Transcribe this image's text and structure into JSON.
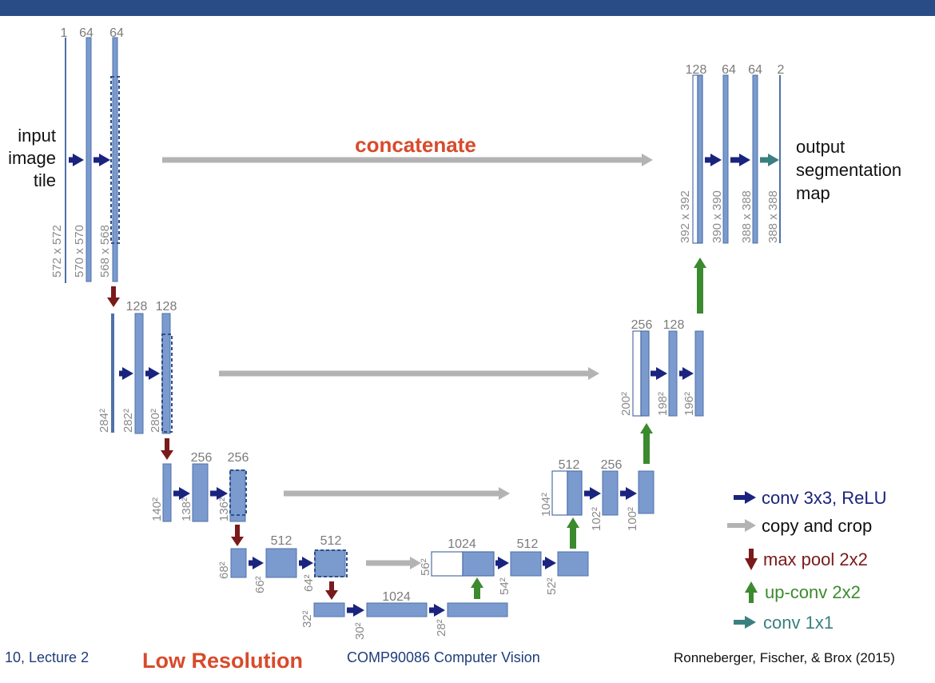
{
  "header": {
    "bar_color": "#2a4c86"
  },
  "diagram": {
    "input_label": [
      "input",
      "image",
      "tile"
    ],
    "output_label": [
      "output",
      "segmentation",
      "map"
    ],
    "concatenate_label": "concatenate",
    "blocks": [
      {
        "id": "in0",
        "ch": "1",
        "size": "572 x 572"
      },
      {
        "id": "e1a",
        "ch": "64",
        "size": "570 x 570"
      },
      {
        "id": "e1b",
        "ch": "64",
        "size": "568 x 568"
      },
      {
        "id": "e2p",
        "ch": "",
        "size": "284²"
      },
      {
        "id": "e2a",
        "ch": "128",
        "size": "282²"
      },
      {
        "id": "e2b",
        "ch": "128",
        "size": "280²"
      },
      {
        "id": "e3p",
        "ch": "",
        "size": "140²"
      },
      {
        "id": "e3a",
        "ch": "256",
        "size": "138²"
      },
      {
        "id": "e3b",
        "ch": "256",
        "size": "136²"
      },
      {
        "id": "e4p",
        "ch": "",
        "size": "68²"
      },
      {
        "id": "e4a",
        "ch": "512",
        "size": "66²"
      },
      {
        "id": "e4b",
        "ch": "512",
        "size": "64²"
      },
      {
        "id": "bp",
        "ch": "",
        "size": "32²"
      },
      {
        "id": "ba",
        "ch": "1024",
        "size": "30²"
      },
      {
        "id": "bb",
        "ch": "",
        "size": "28²"
      },
      {
        "id": "d4u",
        "ch": "1024",
        "size": "56²"
      },
      {
        "id": "d4a",
        "ch": "512",
        "size": "54²"
      },
      {
        "id": "d4b",
        "ch": "",
        "size": "52²"
      },
      {
        "id": "d3u",
        "ch": "512",
        "size": "104²"
      },
      {
        "id": "d3a",
        "ch": "256",
        "size": "102²"
      },
      {
        "id": "d3b",
        "ch": "",
        "size": "100²"
      },
      {
        "id": "d2u",
        "ch": "256",
        "size": "200²"
      },
      {
        "id": "d2a",
        "ch": "128",
        "size": "198²"
      },
      {
        "id": "d2b",
        "ch": "",
        "size": "196²"
      },
      {
        "id": "d1u",
        "ch": "128",
        "size": "392 x 392"
      },
      {
        "id": "d1a",
        "ch": "64",
        "size": "390 x 390"
      },
      {
        "id": "d1b",
        "ch": "64",
        "size": "388 x 388"
      },
      {
        "id": "out",
        "ch": "2",
        "size": "388 x 388"
      }
    ],
    "legend": [
      {
        "label": "conv 3x3, ReLU",
        "color": "#1a237e",
        "kind": "right"
      },
      {
        "label": "copy and crop",
        "color": "#111111",
        "arrow_color": "#b3b3b3",
        "kind": "right"
      },
      {
        "label": "max pool 2x2",
        "color": "#7a1a1a",
        "kind": "down"
      },
      {
        "label": "up-conv 2x2",
        "color": "#3c8a2e",
        "kind": "up"
      },
      {
        "label": "conv 1x1",
        "color": "#3a8080",
        "kind": "right"
      }
    ],
    "colors": {
      "block": "#7b9bcf",
      "block_edge": "#4f70a8",
      "conv": "#1a237e",
      "pool": "#7a1a1a",
      "up": "#3c8a2e",
      "copy": "#b3b3b3",
      "conv1": "#3a8080"
    }
  },
  "footer": {
    "left": "10, Lecture 2",
    "low_res": "Low Resolution",
    "course": "COMP90086 Computer Vision",
    "citation": "Ronneberger, Fischer, & Brox (2015)"
  }
}
